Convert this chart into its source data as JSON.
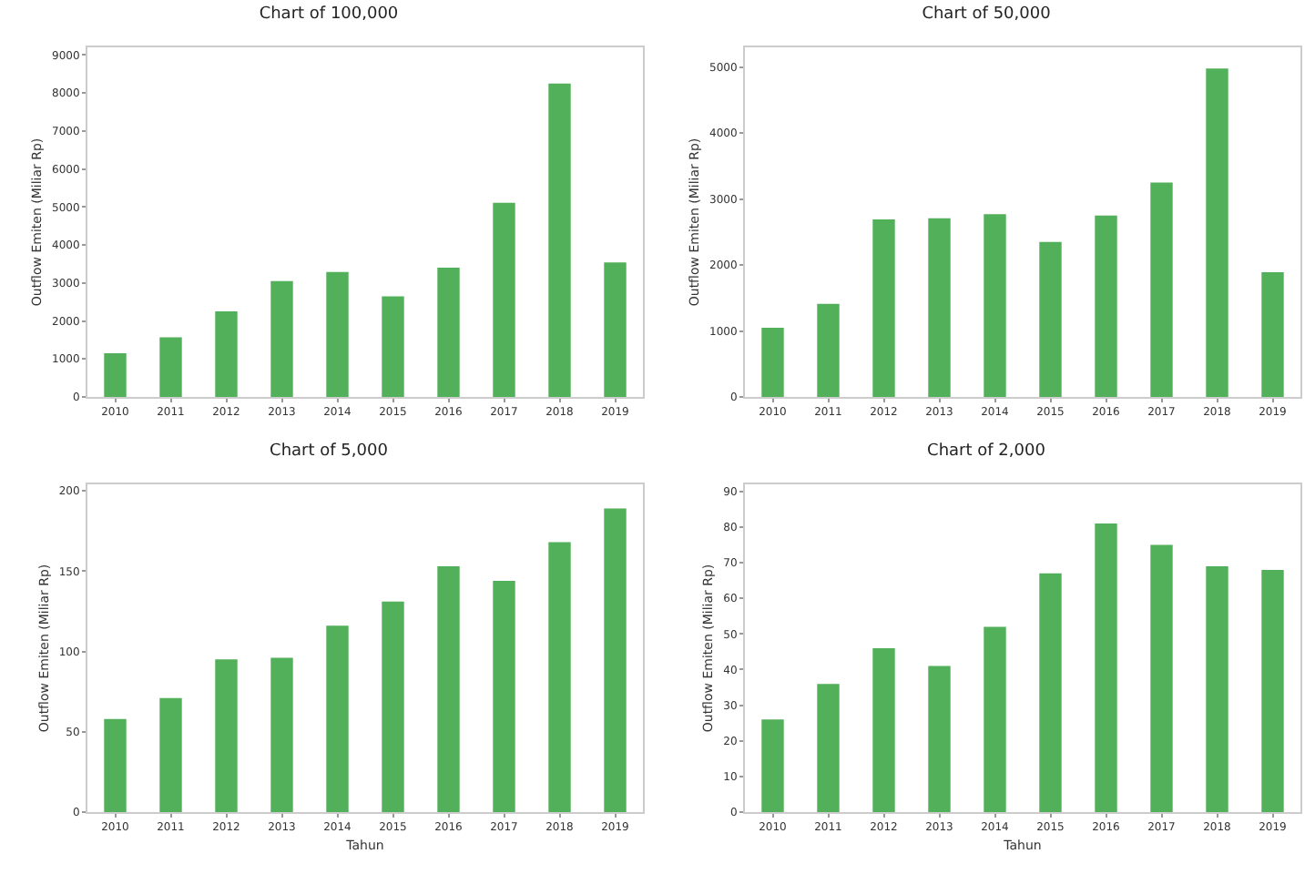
{
  "chart_data": [
    {
      "type": "bar",
      "title": "Chart of 100,000",
      "ylabel": "Outflow Emiten (Miliar Rp)",
      "categories": [
        "2010",
        "2011",
        "2012",
        "2013",
        "2014",
        "2015",
        "2016",
        "2017",
        "2018",
        "2019"
      ],
      "values": [
        1150,
        1570,
        2250,
        3050,
        3290,
        2650,
        3400,
        5110,
        8250,
        3540
      ],
      "color": "#52b05a",
      "ylim": [
        0,
        9200
      ],
      "yticks": [
        0,
        1000,
        2000,
        3000,
        4000,
        5000,
        6000,
        7000,
        8000,
        9000
      ]
    },
    {
      "type": "bar",
      "title": "Chart of 50,000",
      "ylabel": "Outflow Emiten (Miliar Rp)",
      "categories": [
        "2010",
        "2011",
        "2012",
        "2013",
        "2014",
        "2015",
        "2016",
        "2017",
        "2018",
        "2019"
      ],
      "values": [
        1050,
        1410,
        2690,
        2710,
        2770,
        2350,
        2750,
        3250,
        4980,
        1890
      ],
      "color": "#52b05a",
      "ylim": [
        0,
        5300
      ],
      "yticks": [
        0,
        1000,
        2000,
        3000,
        4000,
        5000
      ]
    },
    {
      "type": "bar",
      "title": "Chart of 5,000",
      "xlabel": "Tahun",
      "ylabel": "Outflow Emiten (Miliar Rp)",
      "categories": [
        "2010",
        "2011",
        "2012",
        "2013",
        "2014",
        "2015",
        "2016",
        "2017",
        "2018",
        "2019"
      ],
      "values": [
        58,
        71,
        95,
        96,
        116,
        131,
        153,
        144,
        168,
        189
      ],
      "color": "#52b05a",
      "ylim": [
        0,
        204
      ],
      "yticks": [
        0,
        50,
        100,
        150,
        200
      ]
    },
    {
      "type": "bar",
      "title": "Chart of 2,000",
      "xlabel": "Tahun",
      "ylabel": "Outflow Emiten (Miliar Rp)",
      "categories": [
        "2010",
        "2011",
        "2012",
        "2013",
        "2014",
        "2015",
        "2016",
        "2017",
        "2018",
        "2019"
      ],
      "values": [
        26,
        36,
        46,
        41,
        52,
        67,
        81,
        75,
        69,
        68
      ],
      "color": "#52b05a",
      "ylim": [
        0,
        92
      ],
      "yticks": [
        0,
        10,
        20,
        30,
        40,
        50,
        60,
        70,
        80,
        90
      ]
    }
  ]
}
